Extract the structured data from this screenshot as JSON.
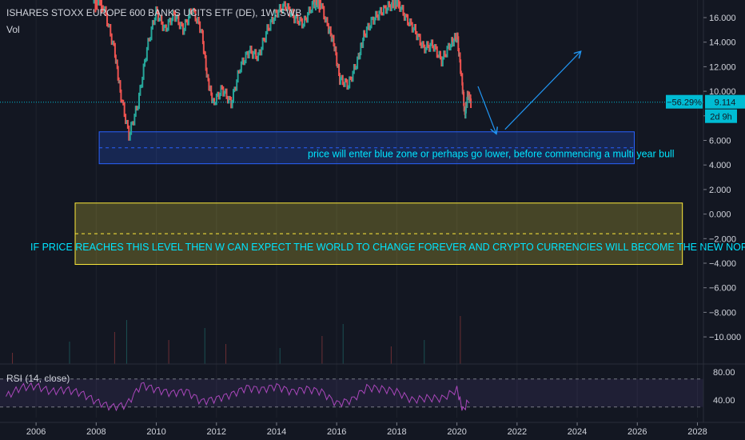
{
  "header": {
    "title": "ISHARES STOXX EUROPE 600 BANKS UCITS ETF (DE), 1W, SWB",
    "volume_label": "Vol",
    "rsi_label": "RSI (14, close)"
  },
  "price_badges": {
    "change_pct": "−56.29%",
    "last_price": "9.114",
    "countdown": "2d 9h"
  },
  "colors": {
    "background": "#131722",
    "candle_up": "#26a69a",
    "candle_down": "#ef5350",
    "blue_zone": "#2962ff",
    "yellow_zone": "#ffeb3b",
    "annotation_text": "#00e5ff",
    "rsi_line": "#ab47bc",
    "price_line": "#00bcd4"
  },
  "chart_data": {
    "type": "line",
    "symbol": "ISHARES STOXX EUROPE 600 BANKS UCITS ETF (DE)",
    "interval": "1W",
    "exchange": "SWB",
    "x_range": [
      2004.8,
      2028.2
    ],
    "x_ticks": [
      "2006",
      "2008",
      "2010",
      "2012",
      "2014",
      "2016",
      "2018",
      "2020",
      "2022",
      "2024",
      "2026",
      "2028"
    ],
    "y_range": [
      -11.8,
      18.0
    ],
    "y_ticks": [
      "16.000",
      "14.000",
      "12.000",
      "10.000",
      "8.000",
      "6.000",
      "4.000",
      "2.000",
      "0.000",
      "−2.000",
      "−4.000",
      "−6.000",
      "−8.000",
      "−10.000"
    ],
    "price_path": [
      [
        2007.9,
        19.0
      ],
      [
        2008.3,
        16.5
      ],
      [
        2008.6,
        13.5
      ],
      [
        2008.8,
        10.0
      ],
      [
        2009.1,
        6.4
      ],
      [
        2009.4,
        9.0
      ],
      [
        2009.7,
        13.5
      ],
      [
        2010.0,
        16.5
      ],
      [
        2010.3,
        15.0
      ],
      [
        2010.6,
        16.3
      ],
      [
        2010.9,
        15.0
      ],
      [
        2011.2,
        16.7
      ],
      [
        2011.5,
        15.0
      ],
      [
        2011.7,
        11.0
      ],
      [
        2011.9,
        9.0
      ],
      [
        2012.2,
        10.2
      ],
      [
        2012.5,
        9.0
      ],
      [
        2012.8,
        12.0
      ],
      [
        2013.1,
        13.3
      ],
      [
        2013.4,
        12.8
      ],
      [
        2013.7,
        15.0
      ],
      [
        2014.0,
        16.4
      ],
      [
        2014.3,
        17.0
      ],
      [
        2014.6,
        16.0
      ],
      [
        2014.9,
        15.5
      ],
      [
        2015.2,
        17.0
      ],
      [
        2015.4,
        17.8
      ],
      [
        2015.7,
        15.3
      ],
      [
        2015.9,
        14.0
      ],
      [
        2016.1,
        11.0
      ],
      [
        2016.4,
        10.5
      ],
      [
        2016.7,
        12.5
      ],
      [
        2016.9,
        14.5
      ],
      [
        2017.2,
        15.8
      ],
      [
        2017.5,
        16.5
      ],
      [
        2017.8,
        17.0
      ],
      [
        2018.0,
        17.5
      ],
      [
        2018.3,
        16.0
      ],
      [
        2018.6,
        15.0
      ],
      [
        2018.9,
        13.5
      ],
      [
        2019.2,
        13.8
      ],
      [
        2019.5,
        12.5
      ],
      [
        2019.8,
        13.9
      ],
      [
        2020.0,
        14.5
      ],
      [
        2020.15,
        11.0
      ],
      [
        2020.25,
        8.0
      ],
      [
        2020.35,
        9.8
      ],
      [
        2020.45,
        9.114
      ]
    ],
    "last_price": 9.114,
    "change_pct": -56.29,
    "projection_arrows": [
      {
        "from": [
          2020.7,
          10.4
        ],
        "to": [
          2021.3,
          6.6
        ]
      },
      {
        "from": [
          2021.6,
          6.9
        ],
        "to": [
          2024.1,
          13.2
        ]
      }
    ],
    "zones": [
      {
        "name": "blue zone",
        "x": [
          2008.1,
          2025.9
        ],
        "y": [
          4.1,
          6.7
        ],
        "mid": 5.4,
        "label": "price will enter blue zone or perhaps go lower, before commencing a multi year bull"
      },
      {
        "name": "yellow zone",
        "x": [
          2007.3,
          2027.5
        ],
        "y": [
          -4.1,
          0.9
        ],
        "mid": -1.6,
        "label": "IF PRICE REACHES THIS LEVEL THEN W CAN EXPECT THE WORLD TO CHANGE FOREVER AND CRYPTO CURRENCIES WILL BECOME THE NEW NORM!"
      }
    ],
    "rsi": {
      "label": "RSI (14, close)",
      "y_ticks": [
        "80.00",
        "40.00"
      ],
      "upper_band": 70,
      "lower_band": 30,
      "y_range": [
        20,
        90
      ],
      "values": [
        [
          2005.0,
          45
        ],
        [
          2005.5,
          58
        ],
        [
          2006.0,
          60
        ],
        [
          2006.5,
          52
        ],
        [
          2007.0,
          55
        ],
        [
          2007.5,
          50
        ],
        [
          2008.0,
          38
        ],
        [
          2008.5,
          30
        ],
        [
          2009.0,
          33
        ],
        [
          2009.5,
          62
        ],
        [
          2010.0,
          55
        ],
        [
          2010.5,
          50
        ],
        [
          2011.0,
          53
        ],
        [
          2011.5,
          38
        ],
        [
          2012.0,
          42
        ],
        [
          2012.5,
          48
        ],
        [
          2013.0,
          58
        ],
        [
          2013.5,
          55
        ],
        [
          2014.0,
          60
        ],
        [
          2014.5,
          52
        ],
        [
          2015.0,
          56
        ],
        [
          2015.5,
          52
        ],
        [
          2016.0,
          35
        ],
        [
          2016.5,
          40
        ],
        [
          2017.0,
          58
        ],
        [
          2017.5,
          56
        ],
        [
          2018.0,
          52
        ],
        [
          2018.5,
          40
        ],
        [
          2019.0,
          43
        ],
        [
          2019.5,
          42
        ],
        [
          2020.0,
          55
        ],
        [
          2020.2,
          25
        ],
        [
          2020.45,
          44
        ]
      ]
    }
  }
}
